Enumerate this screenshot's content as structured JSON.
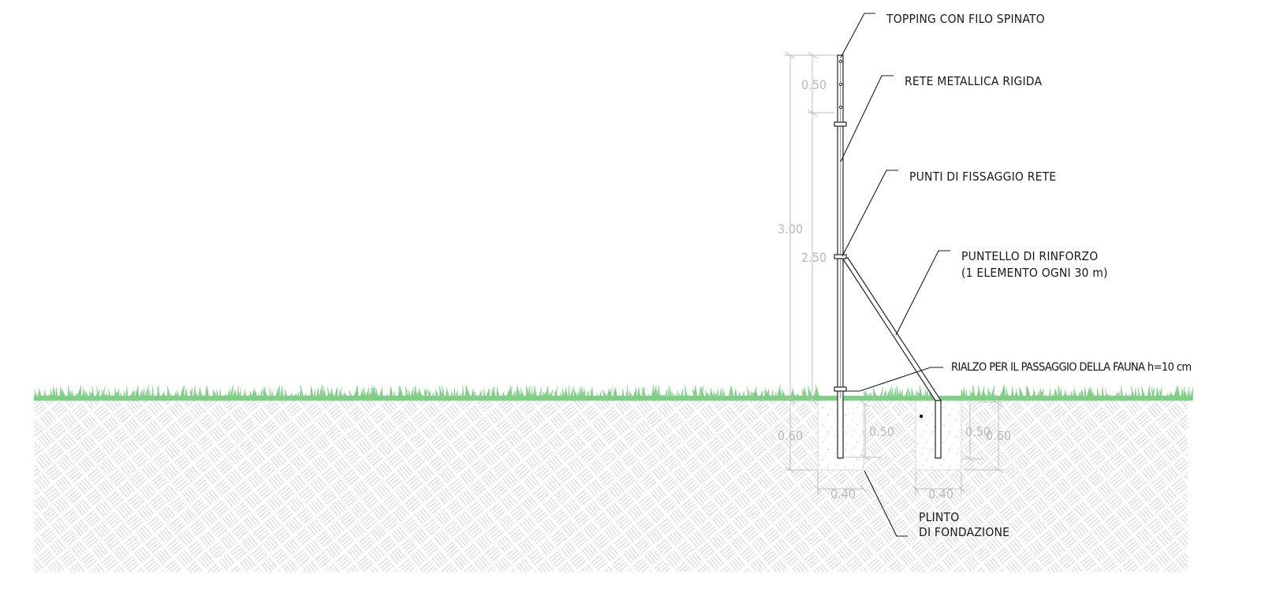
{
  "labels": {
    "topping": "TOPPING CON FILO SPINATO",
    "rete": "RETE METALLICA RIGIDA",
    "punti": "PUNTI DI FISSAGGIO RETE",
    "puntello_1": "PUNTELLO DI RINFORZO",
    "puntello_2": "(1 ELEMENTO OGNI 30 m)",
    "rialzo": "RIALZO PER IL PASSAGGIO DELLA FAUNA h=10 cm",
    "plinto_1": "PLINTO",
    "plinto_2": "DI FONDAZIONE"
  },
  "dimensions": {
    "total_height": "3.00",
    "topping_height": "0.50",
    "mesh_height": "2.50",
    "post_footing_depth": "0.60",
    "post_embed_depth": "0.50",
    "post_footing_width": "0.40",
    "brace_embed_depth": "0.50",
    "brace_footing_depth": "0.60",
    "brace_footing_width": "0.40"
  },
  "colors": {
    "grass": "#7fcf86",
    "ground_hatch": "#d2d2d2",
    "dimension": "#bdbdbd",
    "linework": "#1a1a1a"
  }
}
